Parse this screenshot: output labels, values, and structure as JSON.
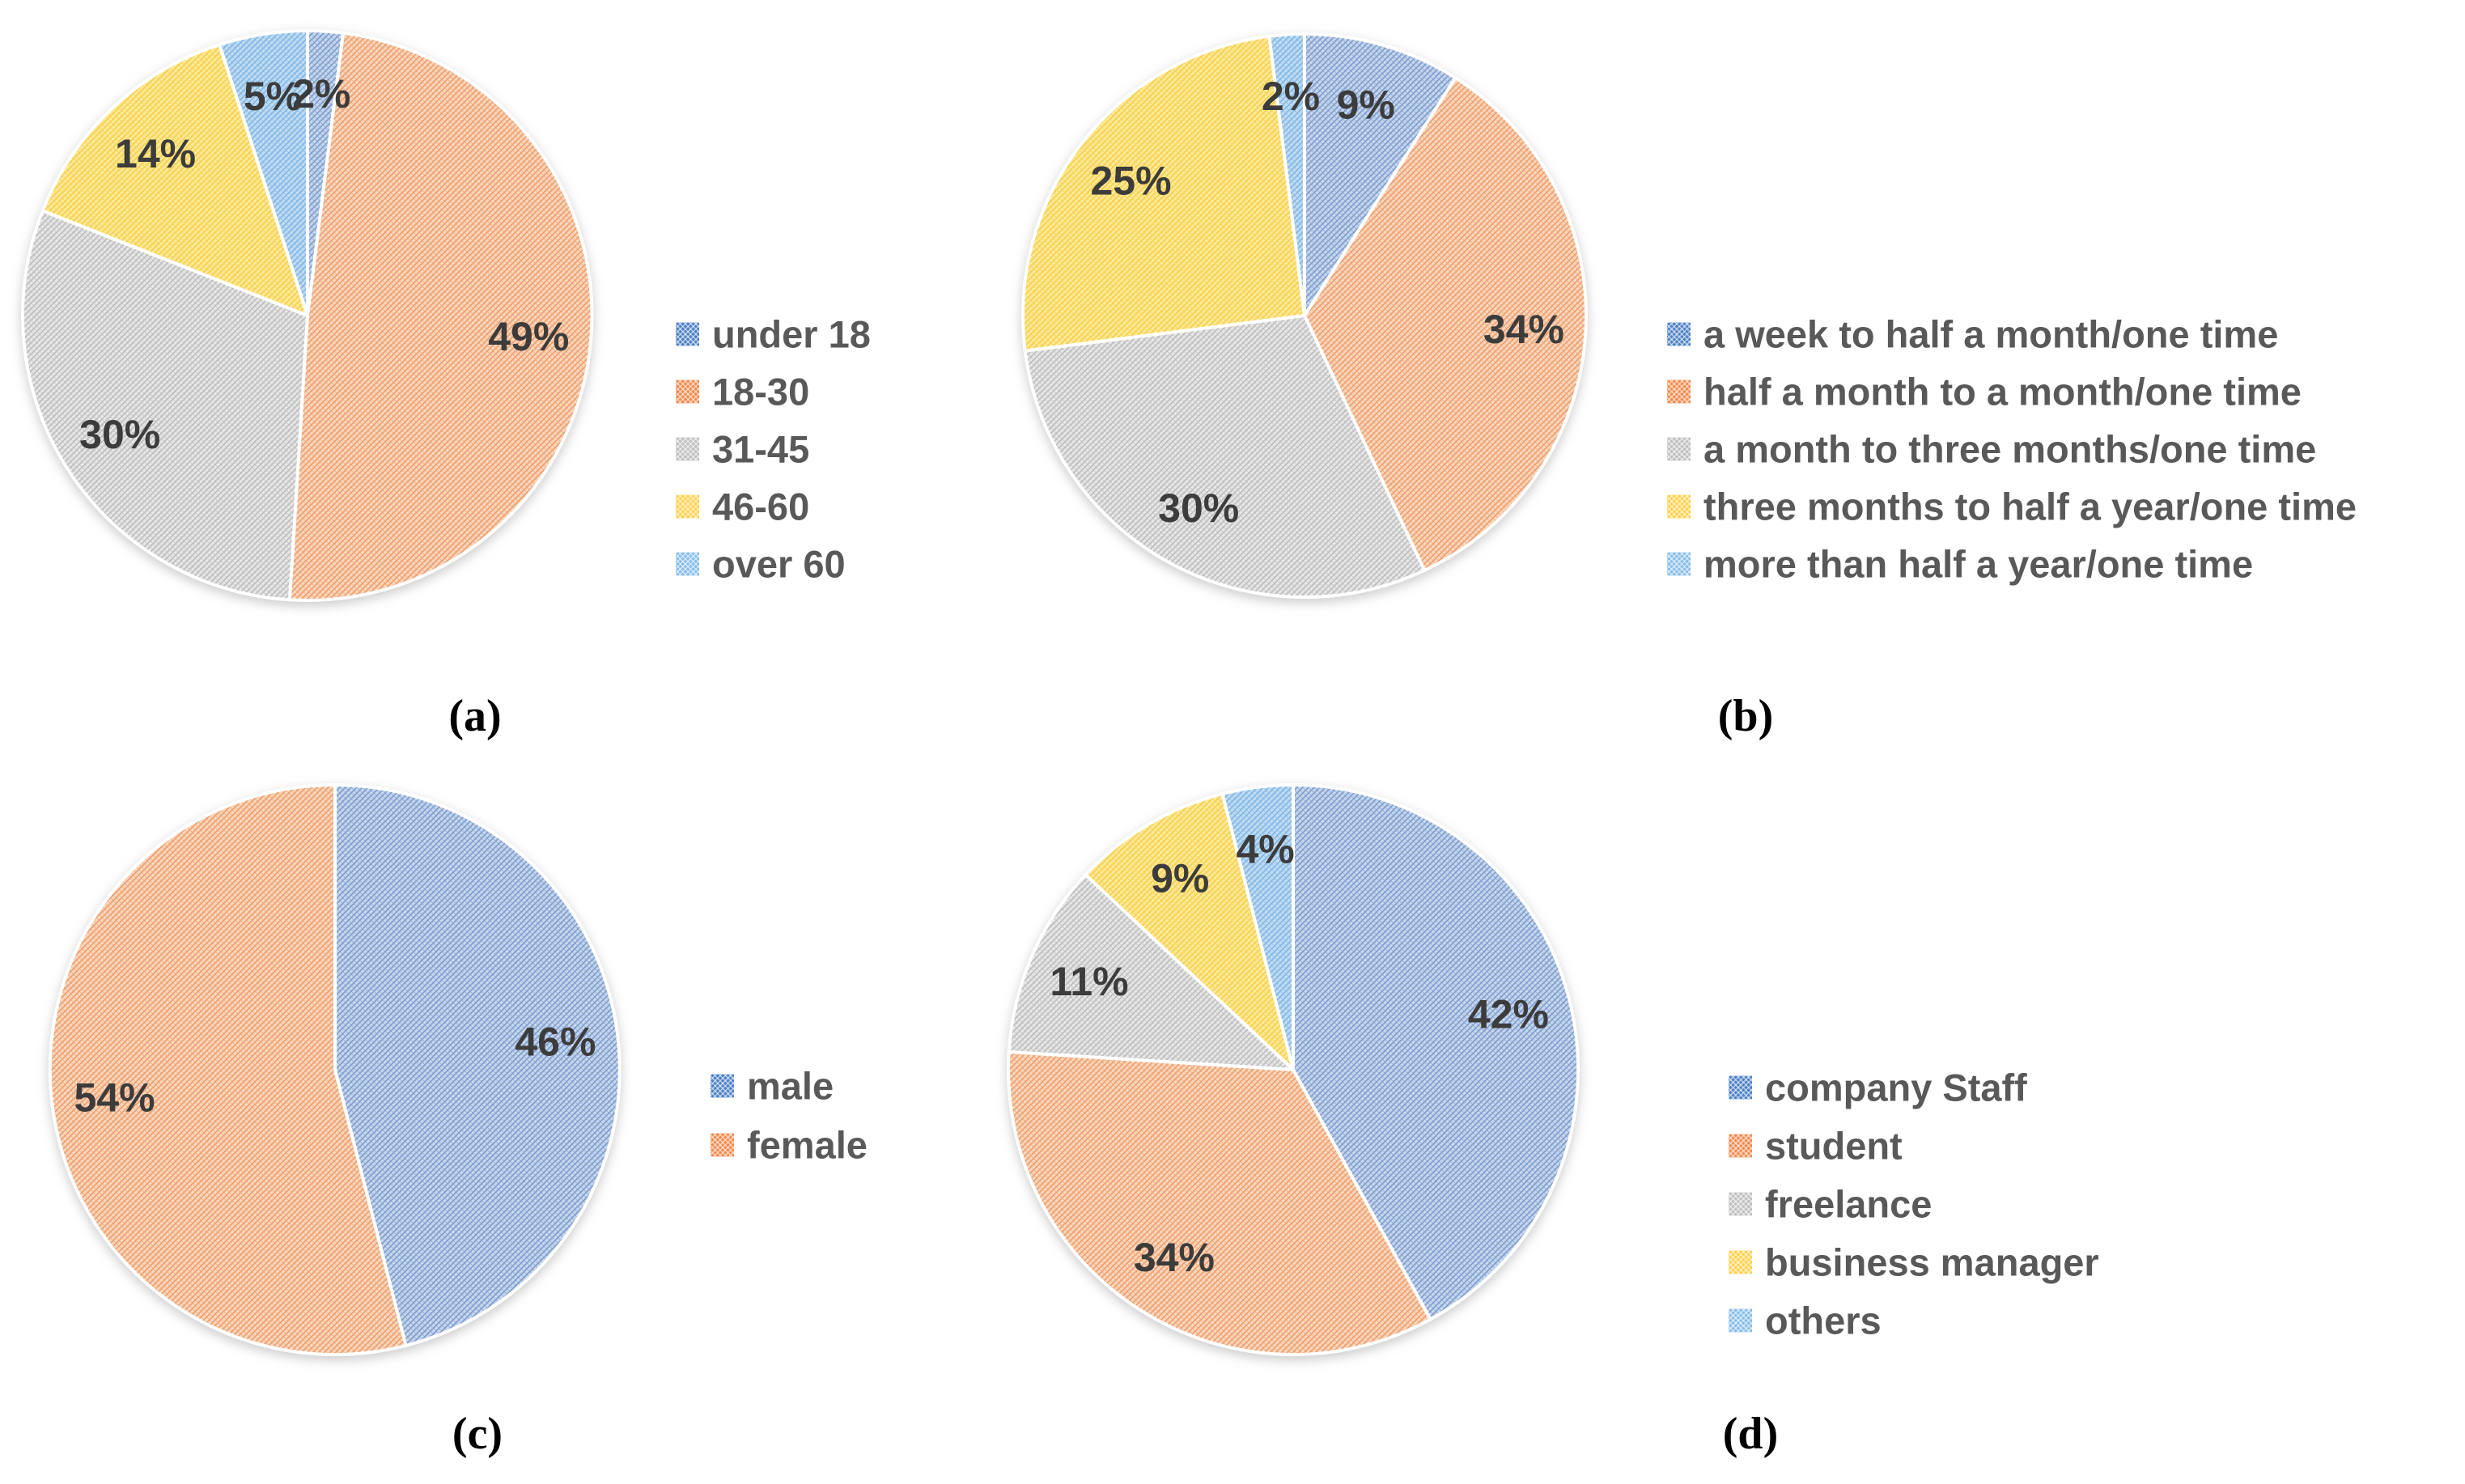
{
  "page": {
    "background": "#ffffff"
  },
  "colors": {
    "series": [
      {
        "name": "blue",
        "slice_base": "#C6D6EE",
        "slice_hatch": "#7E9CCB",
        "swatch": "#4E81C5"
      },
      {
        "name": "orange",
        "slice_base": "#FAD7BC",
        "slice_hatch": "#EC9E6E",
        "swatch": "#F08A4C"
      },
      {
        "name": "gray",
        "slice_base": "#E6E6E6",
        "slice_hatch": "#BDBDBD",
        "swatch": "#BFBFBF"
      },
      {
        "name": "yellow",
        "slice_base": "#FDEA96",
        "slice_hatch": "#F6CE4F",
        "swatch": "#FFD04A"
      },
      {
        "name": "lightblue",
        "slice_base": "#BFDCF3",
        "slice_hatch": "#82B6E3",
        "swatch": "#86BDE9"
      }
    ],
    "percent_label_color": "#3C3C3C",
    "legend_text_color": "#595959",
    "caption_color": "#000000",
    "slice_border": "#FFFFFF"
  },
  "chart_data": [
    {
      "id": "a",
      "type": "pie",
      "caption": "(a)",
      "categories": [
        "under 18",
        "18-30",
        "31-45",
        "46-60",
        "over 60"
      ],
      "values": [
        2,
        49,
        30,
        14,
        5
      ],
      "data_labels": [
        "2%",
        "49%",
        "30%",
        "14%",
        "5%"
      ],
      "start_angle_deg": 0,
      "direction": "clockwise",
      "legend_position": "right",
      "grid": false
    },
    {
      "id": "b",
      "type": "pie",
      "caption": "(b)",
      "categories": [
        "a week to half a month/one time",
        "half a month to a month/one time",
        "a month to three months/one time",
        "three months to half a year/one time",
        "more than half a year/one time"
      ],
      "values": [
        9,
        34,
        30,
        25,
        2
      ],
      "data_labels": [
        "9%",
        "34%",
        "30%",
        "25%",
        "2%"
      ],
      "start_angle_deg": 0,
      "direction": "clockwise",
      "legend_position": "right",
      "grid": false
    },
    {
      "id": "c",
      "type": "pie",
      "caption": "(c)",
      "categories": [
        "male",
        "female"
      ],
      "values": [
        46,
        54
      ],
      "data_labels": [
        "46%",
        "54%"
      ],
      "start_angle_deg": 0,
      "direction": "clockwise",
      "legend_position": "right",
      "grid": false
    },
    {
      "id": "d",
      "type": "pie",
      "caption": "(d)",
      "categories": [
        "company Staff",
        "student",
        "freelance",
        "business manager",
        "others"
      ],
      "values": [
        42,
        34,
        11,
        9,
        4
      ],
      "data_labels": [
        "42%",
        "34%",
        "11%",
        "9%",
        "4%"
      ],
      "start_angle_deg": 0,
      "direction": "clockwise",
      "legend_position": "right",
      "grid": false
    }
  ]
}
